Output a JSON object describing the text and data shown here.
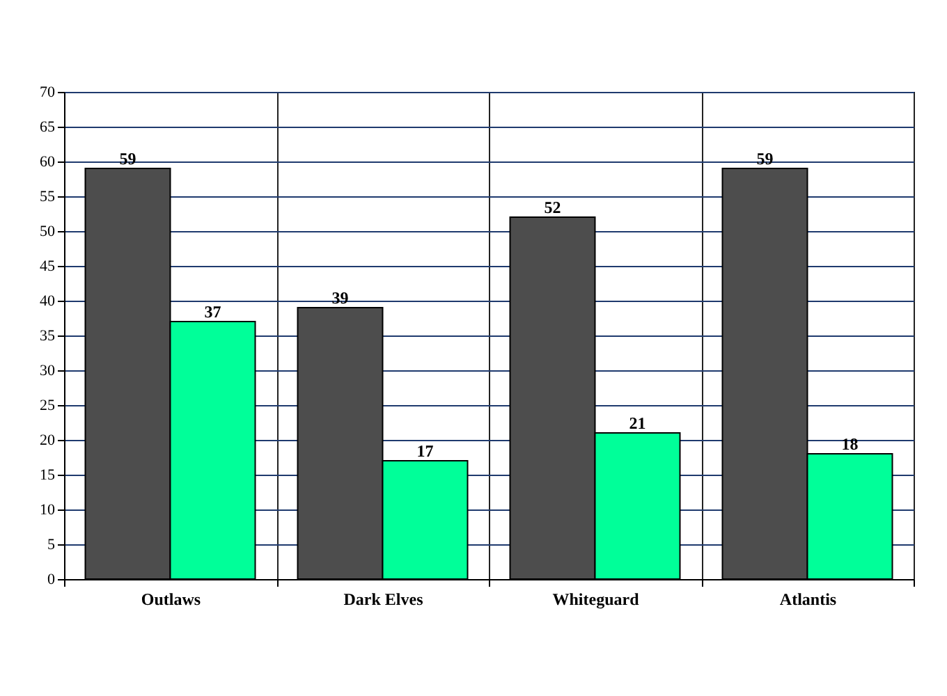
{
  "chart_data": {
    "type": "bar",
    "categories": [
      "Outlaws",
      "Dark Elves",
      "Whiteguard",
      "Atlantis"
    ],
    "series": [
      {
        "color": "#4d4d4d",
        "values": [
          59,
          39,
          52,
          59
        ]
      },
      {
        "color": "#00ff99",
        "values": [
          37,
          17,
          21,
          18
        ]
      }
    ],
    "ylim": [
      0,
      70
    ],
    "yticks": [
      0,
      5,
      10,
      15,
      20,
      25,
      30,
      35,
      40,
      45,
      50,
      55,
      60,
      65,
      70
    ],
    "grid": true,
    "data_labels": true
  }
}
